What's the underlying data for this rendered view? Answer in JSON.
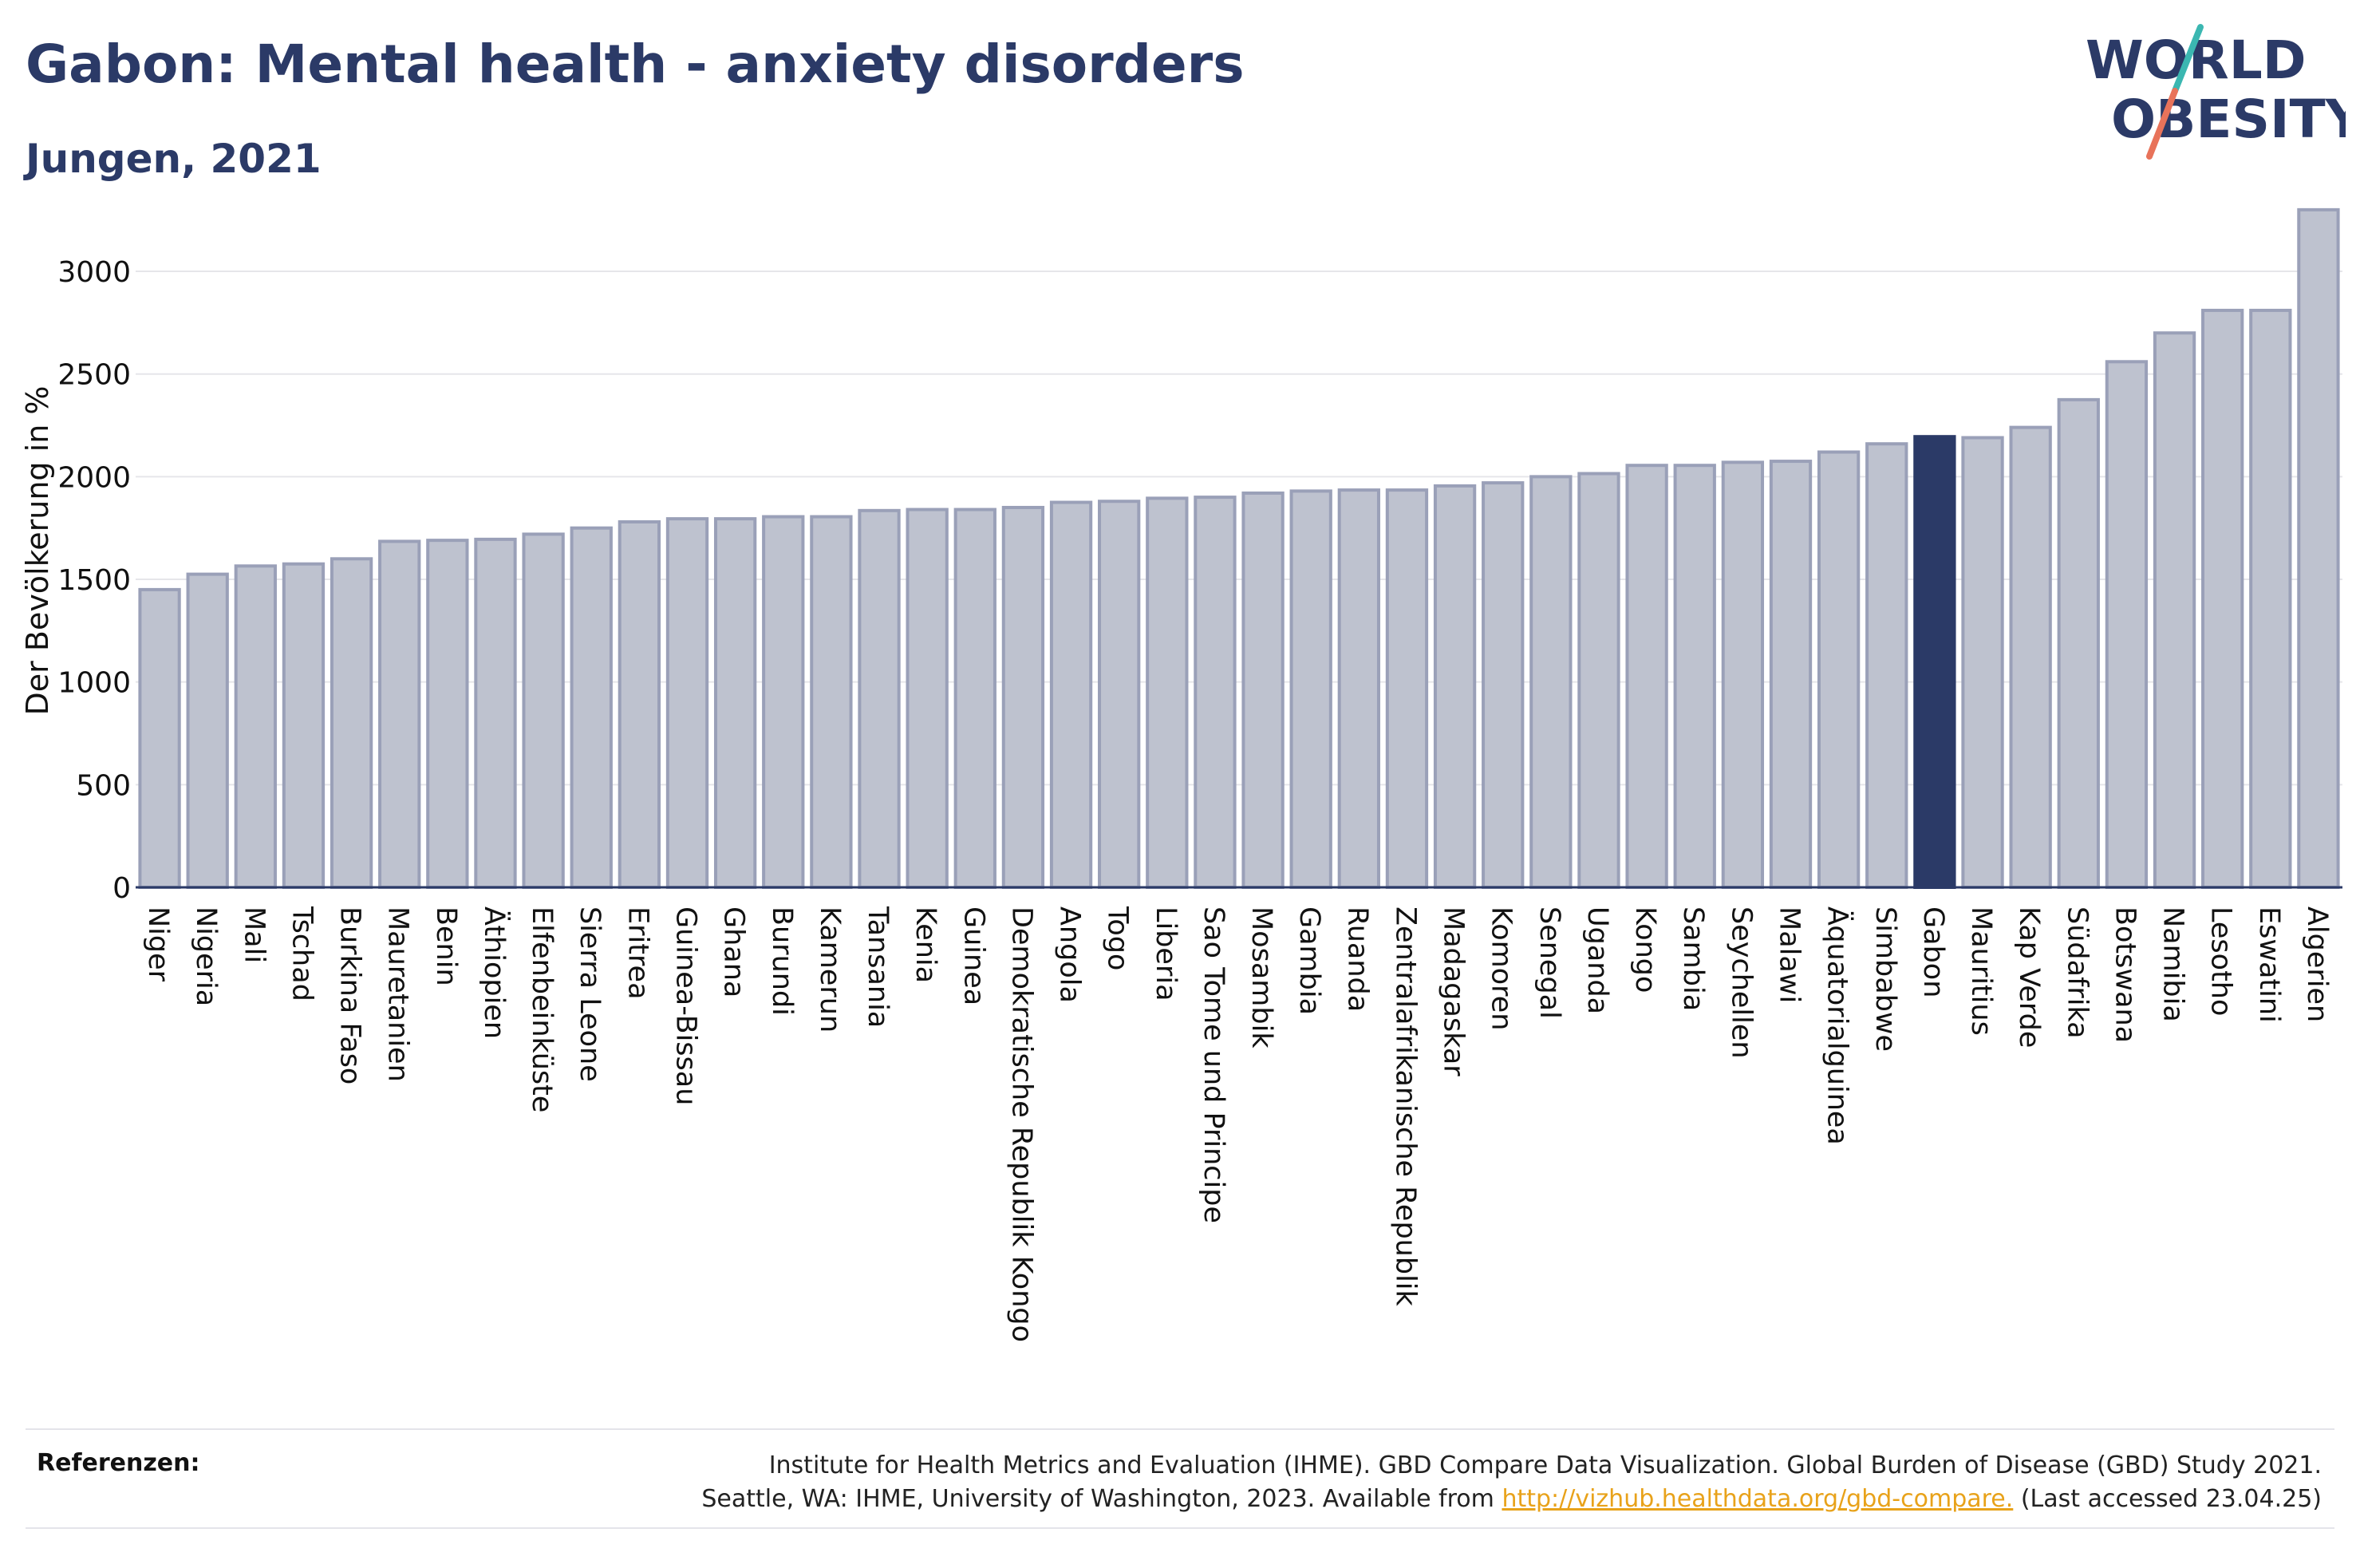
{
  "header": {
    "title": "Gabon: Mental health - anxiety disorders",
    "subtitle": "Jungen, 2021"
  },
  "logo": {
    "line1": "WORLD",
    "line2": "OBESITY",
    "colors": {
      "text": "#2b3a67",
      "slash_teal": "#3bb7b1",
      "slash_coral": "#e8735a"
    }
  },
  "references": {
    "label": "Referenzen:",
    "line1": "Institute for Health Metrics and Evaluation (IHME). GBD Compare Data Visualization. Global Burden of Disease (GBD) Study 2021.",
    "line2_before": "Seattle, WA: IHME, University of Washington, 2023. Available from",
    "link": "http://vizhub.healthdata.org/gbd-compare.",
    "line2_after": "(Last accessed 23.04.25)"
  },
  "chart_data": {
    "type": "bar",
    "ylabel": "Der Bevölkerung in %",
    "ylim": [
      0,
      3350
    ],
    "yticks": [
      0,
      500,
      1000,
      1500,
      2000,
      2500,
      3000
    ],
    "grid": true,
    "highlight": "Gabon",
    "colors": {
      "bar": "#bec2cf",
      "bar_edge": "#9aa0b8",
      "highlight": "#2b3a67",
      "grid": "#e6e6ea"
    },
    "categories": [
      "Niger",
      "Nigeria",
      "Mali",
      "Tschad",
      "Burkina Faso",
      "Mauretanien",
      "Benin",
      "Äthiopien",
      "Elfenbeinküste",
      "Sierra Leone",
      "Eritrea",
      "Guinea-Bissau",
      "Ghana",
      "Burundi",
      "Kamerun",
      "Tansania",
      "Kenia",
      "Guinea",
      "Demokratische Republik Kongo",
      "Angola",
      "Togo",
      "Liberia",
      "Sao Tome und Principe",
      "Mosambik",
      "Gambia",
      "Ruanda",
      "Zentralafrikanische Republik",
      "Madagaskar",
      "Komoren",
      "Senegal",
      "Uganda",
      "Kongo",
      "Sambia",
      "Seychellen",
      "Malawi",
      "Äquatorialguinea",
      "Simbabwe",
      "Gabon",
      "Mauritius",
      "Kap Verde",
      "Südafrika",
      "Botswana",
      "Namibia",
      "Lesotho",
      "Eswatini",
      "Algerien"
    ],
    "values": [
      1450,
      1525,
      1565,
      1575,
      1600,
      1685,
      1690,
      1695,
      1720,
      1750,
      1780,
      1795,
      1795,
      1805,
      1805,
      1835,
      1840,
      1840,
      1850,
      1875,
      1880,
      1895,
      1900,
      1920,
      1930,
      1935,
      1935,
      1955,
      1970,
      2000,
      2015,
      2055,
      2055,
      2070,
      2075,
      2120,
      2160,
      2195,
      2190,
      2240,
      2375,
      2560,
      2700,
      2810,
      2810,
      3300
    ]
  }
}
